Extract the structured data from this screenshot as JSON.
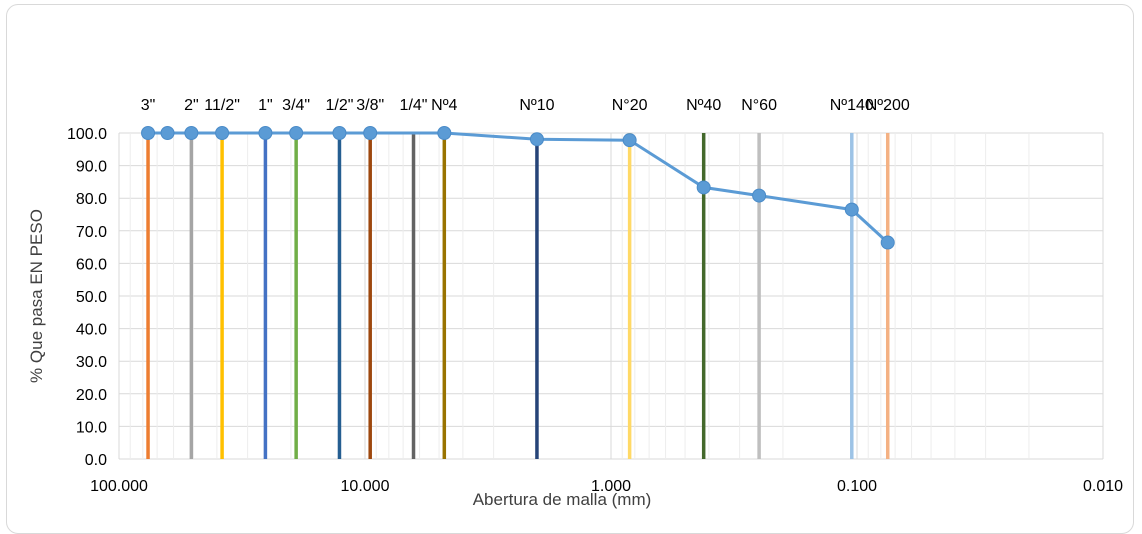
{
  "chart_data": {
    "type": "scatter",
    "title": "",
    "xlabel": "Abertura de malla (mm)",
    "ylabel": "% Que pasa EN PESO",
    "xscale": "log",
    "xaxis_reversed": true,
    "xlim": [
      100,
      0.01
    ],
    "ylim": [
      0,
      100
    ],
    "x_tick_labels": [
      "100.000",
      "10.000",
      "1.000",
      "0.100",
      "0.010"
    ],
    "y_tick_labels": [
      "0.0",
      "10.0",
      "20.0",
      "30.0",
      "40.0",
      "50.0",
      "60.0",
      "70.0",
      "80.0",
      "90.0",
      "100.0"
    ],
    "grid": true,
    "series": [
      {
        "x": [
          76.2,
          63.5,
          50.8,
          38.1,
          25.4,
          19.05,
          12.7,
          9.525,
          4.76,
          2.0,
          0.84,
          0.42,
          0.25,
          0.105,
          0.075
        ],
        "y": [
          100,
          100,
          100,
          100,
          100,
          100,
          100,
          100,
          100,
          98.1,
          97.8,
          83.3,
          80.8,
          76.5,
          66.4
        ],
        "color": "#5b9bd5"
      }
    ],
    "sieve_lines": [
      {
        "x": 76.2,
        "color": "#ed7d31"
      },
      {
        "x": 50.8,
        "color": "#a5a5a5"
      },
      {
        "x": 38.1,
        "color": "#ffc000"
      },
      {
        "x": 25.4,
        "color": "#4472c4"
      },
      {
        "x": 19.05,
        "color": "#70ad47"
      },
      {
        "x": 12.7,
        "color": "#255e91"
      },
      {
        "x": 9.525,
        "color": "#9e480e"
      },
      {
        "x": 6.35,
        "color": "#636363"
      },
      {
        "x": 4.76,
        "color": "#997300"
      },
      {
        "x": 2.0,
        "color": "#264478"
      },
      {
        "x": 0.84,
        "color": "#ffd966"
      },
      {
        "x": 0.42,
        "color": "#43682b"
      },
      {
        "x": 0.25,
        "color": "#bfbfbf"
      },
      {
        "x": 0.105,
        "color": "#9dc3e6"
      },
      {
        "x": 0.075,
        "color": "#f4b183"
      }
    ],
    "sieve_labels": [
      {
        "text": "3\"",
        "x": 76.2
      },
      {
        "text": "2\"",
        "x": 50.8
      },
      {
        "text": "11/2\"",
        "x": 38.1
      },
      {
        "text": "1\"",
        "x": 25.4
      },
      {
        "text": "3/4\"",
        "x": 19.05
      },
      {
        "text": "1/2\"",
        "x": 12.7
      },
      {
        "text": "3/8\"",
        "x": 9.525
      },
      {
        "text": "1/4\"",
        "x": 6.35
      },
      {
        "text": "Nº4",
        "x": 4.76
      },
      {
        "text": "Nº10",
        "x": 2.0
      },
      {
        "text": "N°20",
        "x": 0.84
      },
      {
        "text": "Nº40",
        "x": 0.42
      },
      {
        "text": "N°60",
        "x": 0.25
      },
      {
        "text": "Nº140",
        "x": 0.105
      },
      {
        "text": "Nº200",
        "x": 0.075
      }
    ]
  }
}
